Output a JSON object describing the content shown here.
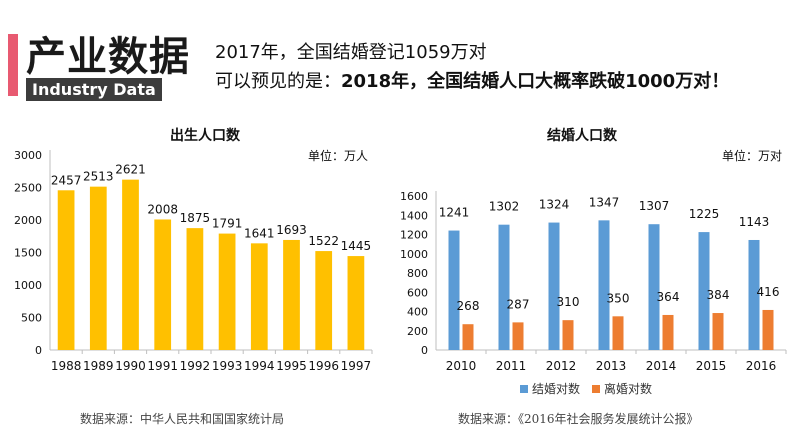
{
  "header": {
    "title": "产业数据",
    "subtitle": "Industry Data",
    "line1": "2017年，全国结婚登记1059万对",
    "line2_prefix": "可以预见的是：",
    "line2_bold": "2018年，全国结婚人口大概率跌破1000万对！",
    "accent_color": "#e85a71"
  },
  "chart_data": [
    {
      "type": "bar",
      "title": "出生人口数",
      "unit": "单位：万人",
      "categories": [
        "1988",
        "1989",
        "1990",
        "1991",
        "1992",
        "1993",
        "1994",
        "1995",
        "1996",
        "1997"
      ],
      "series": [
        {
          "values": [
            2457,
            2513,
            2621,
            2008,
            1875,
            1791,
            1641,
            1693,
            1522,
            1445
          ],
          "color": "#ffc000"
        }
      ],
      "ylim": [
        0,
        3000
      ],
      "yticks": [
        0,
        500,
        1000,
        1500,
        2000,
        2500,
        3000
      ],
      "grid": false
    },
    {
      "type": "bar",
      "title": "结婚人口数",
      "unit": "单位：万对",
      "categories": [
        "2010",
        "2011",
        "2012",
        "2013",
        "2014",
        "2015",
        "2016"
      ],
      "series": [
        {
          "name": "结婚对数",
          "values": [
            1241,
            1302,
            1324,
            1347,
            1307,
            1225,
            1143
          ],
          "color": "#5b9bd5"
        },
        {
          "name": "离婚对数",
          "values": [
            268,
            287,
            310,
            350,
            364,
            384,
            416
          ],
          "color": "#ed7d31"
        }
      ],
      "ylim": [
        0,
        1600
      ],
      "yticks": [
        0,
        200,
        400,
        600,
        800,
        1000,
        1200,
        1400,
        1600
      ],
      "legend": "bottom",
      "grid": false
    }
  ],
  "sources": {
    "left": "数据来源：中华人民共和国国家统计局",
    "right": "数据来源：《2016年社会服务发展统计公报》"
  }
}
